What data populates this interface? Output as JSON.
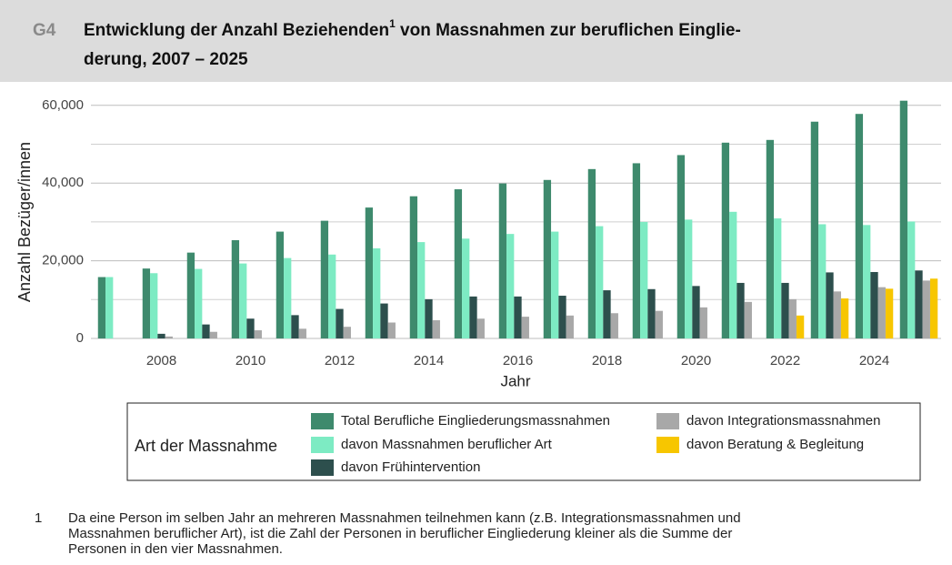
{
  "header": {
    "label": "G4",
    "title": [
      "Entwicklung der Anzahl Beziehenden",
      " von Massnahmen zur beruflichen Einglie-",
      "derung, 2007 – 2025"
    ],
    "title_footnote_ref": "1"
  },
  "chart_data": {
    "type": "bar",
    "categories": [
      null,
      2008,
      null,
      2010,
      null,
      2012,
      null,
      2014,
      null,
      2016,
      null,
      2018,
      null,
      2020,
      null,
      2022,
      null,
      2024,
      null
    ],
    "series": [
      {
        "name": "Total Berufliche Eingliederungsmassnahmen",
        "color": "#3e8a6d",
        "values": [
          15800,
          18000,
          22100,
          25300,
          27500,
          30300,
          33700,
          36600,
          38400,
          39900,
          40800,
          43600,
          45100,
          47200,
          50400,
          51100,
          55800,
          57800,
          61200
        ]
      },
      {
        "name": "davon Massnahmen beruflicher Art",
        "color": "#7debc3",
        "values": [
          15800,
          16800,
          17900,
          19300,
          20700,
          21600,
          23200,
          24800,
          25700,
          26900,
          27500,
          28900,
          30000,
          30600,
          32600,
          30900,
          29400,
          29200,
          30100
        ]
      },
      {
        "name": "davon Frühintervention",
        "color": "#2d4f4d",
        "values": [
          null,
          1200,
          3600,
          5100,
          6000,
          7600,
          9000,
          10100,
          10800,
          10800,
          11000,
          12400,
          12700,
          13500,
          14300,
          14300,
          17000,
          17100,
          17500
        ]
      },
      {
        "name": "davon Integrationsmassnahmen",
        "color": "#a8a8a8",
        "values": [
          null,
          500,
          1700,
          2100,
          2500,
          3000,
          4100,
          4700,
          5100,
          5600,
          5900,
          6500,
          7100,
          8000,
          9400,
          10100,
          12100,
          13200,
          14900
        ]
      },
      {
        "name": "davon Beratung & Begleitung",
        "color": "#f7c600",
        "values": [
          null,
          null,
          null,
          null,
          null,
          null,
          null,
          null,
          null,
          null,
          null,
          null,
          null,
          null,
          null,
          5900,
          10300,
          12800,
          15400
        ]
      }
    ],
    "ylim": [
      0,
      63000
    ],
    "yticks": [
      0,
      {
        "value": 20000,
        "label": "20,000"
      },
      {
        "value": 40000,
        "label": "40,000"
      },
      {
        "value": 60000,
        "label": "60,000"
      }
    ],
    "minor_yticks": [
      10000,
      30000,
      50000
    ],
    "grid": true,
    "xlabel": "Jahr",
    "ylabel": "Anzahl Bezüger/innen",
    "legend_title": "Art der Massnahme"
  },
  "footnote": {
    "marker": "1",
    "lines": [
      "Da eine Person im selben Jahr an mehreren Massnahmen teilnehmen kann (z.B. Integrationsmassnahmen und",
      "Massnahmen beruflicher Art), ist die Zahl der Personen in beruflicher Eingliederung kleiner als die Summe der",
      "Personen in den vier Massnahmen."
    ]
  }
}
